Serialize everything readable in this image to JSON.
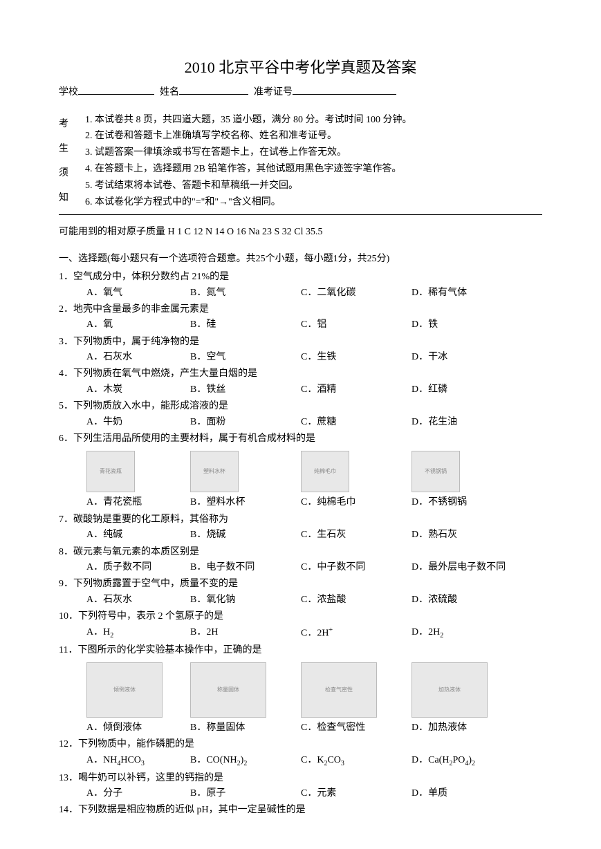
{
  "title": "2010 北京平谷中考化学真题及答案",
  "header": {
    "school_label": "学校",
    "name_label": "姓名",
    "id_label": "准考证号"
  },
  "notes_vertical": [
    "考",
    "生",
    "须",
    "知"
  ],
  "notes": [
    "1. 本试卷共 8 页，共四道大题，35 道小题，满分 80 分。考试时间 100 分钟。",
    "2. 在试卷和答题卡上准确填写学校名称、姓名和准考证号。",
    "3. 试题答案一律填涂或书写在答题卡上，在试卷上作答无效。",
    "4. 在答题卡上，选择题用 2B 铅笔作答，其他试题用黑色字迹签字笔作答。",
    "5. 考试结束将本试卷、答题卡和草稿纸一并交回。",
    "6. 本试卷化学方程式中的\"=\"和\"→\"含义相同。"
  ],
  "atomic_line": "可能用到的相对原子质量  H 1   C 12   N 14   O 16   Na 23   S 32   Cl 35.5",
  "section1_header": "一、选择题(每小题只有一个选项符合题意。共25个小题，每小题1分，共25分)",
  "questions": [
    {
      "num": "1",
      "stem": "1．空气成分中，体积分数约占 21%的是",
      "a": "A．氧气",
      "b": "B．氮气",
      "c": "C．二氧化碳",
      "d": "D．稀有气体"
    },
    {
      "num": "2",
      "stem": "2．地壳中含量最多的非金属元素是",
      "a": "A．氧",
      "b": "B．硅",
      "c": "C．铝",
      "d": "D．铁"
    },
    {
      "num": "3",
      "stem": "3．下列物质中，属于纯净物的是",
      "a": "A．石灰水",
      "b": "B．空气",
      "c": "C．生铁",
      "d": "D．干冰"
    },
    {
      "num": "4",
      "stem": "4．下列物质在氧气中燃烧，产生大量白烟的是",
      "a": "A．木炭",
      "b": "B．铁丝",
      "c": "C．酒精",
      "d": "D．红磷"
    },
    {
      "num": "5",
      "stem": "5．下列物质放入水中，能形成溶液的是",
      "a": "A．牛奶",
      "b": "B．面粉",
      "c": "C．蔗糖",
      "d": "D．花生油"
    },
    {
      "num": "6",
      "stem": "6．下列生活用品所使用的主要材料，属于有机合成材料的是",
      "has_images": true,
      "img_a": "青花瓷瓶",
      "img_b": "塑料水杯",
      "img_c": "纯棉毛巾",
      "img_d": "不锈钢锅",
      "a": "A．青花瓷瓶",
      "b": "B．塑料水杯",
      "c": "C．纯棉毛巾",
      "d": "D．不锈钢锅"
    },
    {
      "num": "7",
      "stem": "7．碳酸钠是重要的化工原料，其俗称为",
      "a": "A．纯碱",
      "b": "B．烧碱",
      "c": "C．生石灰",
      "d": "D．熟石灰"
    },
    {
      "num": "8",
      "stem": "8．碳元素与氧元素的本质区别是",
      "a": "A．质子数不同",
      "b": "B．电子数不同",
      "c": "C．中子数不同",
      "d": "D．最外层电子数不同"
    },
    {
      "num": "9",
      "stem": "9．下列物质露置于空气中，质量不变的是",
      "a": "A．石灰水",
      "b": "B．氧化钠",
      "c": "C．浓盐酸",
      "d": "D．浓硫酸"
    },
    {
      "num": "10",
      "stem": "10．下列符号中，表示 2 个氢原子的是",
      "a_html": "A．H<sub>2</sub>",
      "b_html": "B．2H",
      "c_html": "C．2H<sup>+</sup>",
      "d_html": "D．2H<sub>2</sub>"
    },
    {
      "num": "11",
      "stem": "11．下图所示的化学实验基本操作中，正确的是",
      "has_images": true,
      "img_large": true,
      "img_a": "倾倒液体",
      "img_b": "称量固体",
      "img_c": "检查气密性",
      "img_d": "加热液体",
      "a": "A．倾倒液体",
      "b": "B．称量固体",
      "c": "C．检查气密性",
      "d": "D．加热液体"
    },
    {
      "num": "12",
      "stem": "12．下列物质中，能作磷肥的是",
      "a_html": "A．NH<sub>4</sub>HCO<sub>3</sub>",
      "b_html": "B．CO(NH<sub>2</sub>)<sub>2</sub>",
      "c_html": "C．K<sub>2</sub>CO<sub>3</sub>",
      "d_html": "D．Ca(H<sub>2</sub>PO<sub>4</sub>)<sub>2</sub>"
    },
    {
      "num": "13",
      "stem": "13．喝牛奶可以补钙，这里的钙指的是",
      "a": "A．分子",
      "b": "B．原子",
      "c": "C．元素",
      "d": "D．单质"
    },
    {
      "num": "14",
      "stem": "14．下列数据是相应物质的近似 pH，其中一定呈碱性的是"
    }
  ]
}
